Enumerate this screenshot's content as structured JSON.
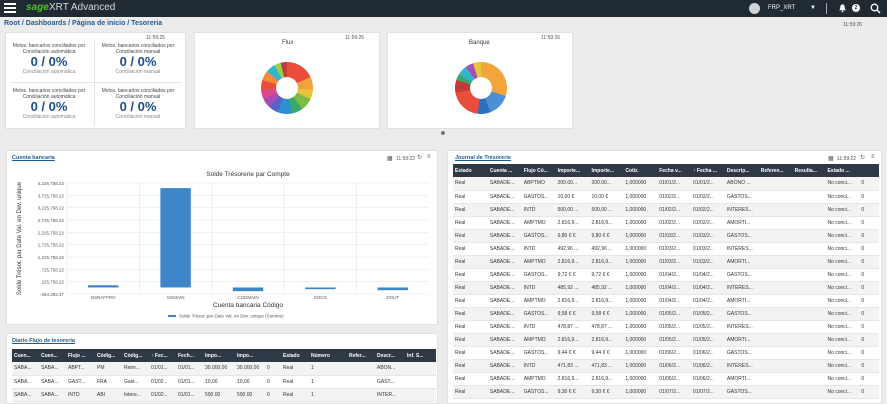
{
  "app": {
    "logo": "sage",
    "title": "XRT Advanced",
    "user": "FRP_XRT",
    "notifications": "2"
  },
  "breadcrumb": "Root / Dashboards / Página de inicio / Tesoreria",
  "breadcrumb_time": "11:59:26",
  "kpis": [
    {
      "title": "Mvtos. bancarios conciliados por Conciliación automática",
      "value": "0 / 0%",
      "sub": "Conciliación automática"
    },
    {
      "title": "Mvtos. bancarios conciliados por Conciliación manual",
      "value": "0 / 0%",
      "sub": "Conciliación manual"
    },
    {
      "title": "Mvtos. bancarios conciliados por Conciliación automática",
      "value": "0 / 0%",
      "sub": "Conciliación automática"
    },
    {
      "title": "Mvtos. bancarios conciliados por Conciliación manual",
      "value": "0 / 0%",
      "sub": "Conciliación manual"
    }
  ],
  "kpi_time": "11:59:25",
  "flux": {
    "title": "Flux",
    "time": "11:59:26"
  },
  "banque": {
    "title": "Banque",
    "time": "11:59:26"
  },
  "compte": {
    "link": "Cuenta bancaria",
    "time": "11:59:22"
  },
  "chart_data": {
    "type": "bar",
    "title": "Solde Trésorerie par Compte",
    "xlabel": "Cuenta bancaria Código",
    "ylabel": "Solde Trésor. par Date Val. en Dev. unique",
    "ylim": [
      -264283.47,
      4226758.22
    ],
    "yticks": [
      "4,226,758.22",
      "3,725,758.22",
      "3,225,758.22",
      "2,725,758.22",
      "2,225,758.22",
      "1,725,758.22",
      "1,225,758.22",
      "725,758.22",
      "225,758.22",
      "-264,283.47"
    ],
    "categories": [
      "BSRAFFRO",
      "SGMAIN",
      "CODMAIN",
      "SOCG",
      "DOUT"
    ],
    "values": [
      90000,
      4020000,
      -150000,
      -70000,
      -110000
    ],
    "legend": "Solde Trésor. par Date Val. en Dev. unique (Somme)"
  },
  "flujo": {
    "link": "Diario Flujo de tesorería",
    "headers": [
      "Cuen...",
      "Cuen...",
      "Flujo ...",
      "Códig...",
      "Códig...",
      "↑ Fec...",
      "Fech...",
      "Impo...",
      "Impo...",
      "",
      "Estado",
      "Número",
      "Refer...",
      "Descr...",
      "Inf. S..."
    ],
    "rows": [
      [
        "SABA...",
        "SABA...",
        "ABPT...",
        "PM",
        "Reim...",
        "01/01...",
        "01/01...",
        "30.000,00",
        "30.000,00",
        "0",
        "Real",
        "1",
        "",
        "ABON...",
        ""
      ],
      [
        "SABA...",
        "SABA...",
        "GAST...",
        "FRA",
        "Gast...",
        "01/02...",
        "01/01...",
        "10,00",
        "10,00",
        "0",
        "Real",
        "1",
        "",
        "GAST...",
        ""
      ],
      [
        "SABA...",
        "SABA...",
        "INTD",
        "ABI",
        "Intere...",
        "01/02...",
        "01/01...",
        "500,00",
        "500,00",
        "0",
        "Real",
        "1",
        "",
        "INTER...",
        ""
      ]
    ]
  },
  "journal": {
    "link": "Journal de Trésorerie",
    "time": "11:59:22",
    "headers": [
      "Estado",
      "Cuenta ...",
      "Flujo Có...",
      "Importe...",
      "Importe...",
      "Cotiz.",
      "Fecha v...",
      "↑ Fecha ...",
      "Descrip...",
      "Referen...",
      "Resulta...",
      "Estado ...",
      ""
    ],
    "rows": [
      [
        "Real",
        "SABADE...",
        "ABPTMO",
        "200.00...",
        "200.00...",
        "1,000000",
        "01/01/2...",
        "01/01/2...",
        "ABONO ...",
        "",
        "",
        "No conci...",
        "0"
      ],
      [
        "Real",
        "SABADE...",
        "GASTOS...",
        "10,00 €",
        "10,00 €",
        "1,000000",
        "01/02/2...",
        "01/02/2...",
        "GASTOS...",
        "",
        "",
        "No conci...",
        "0"
      ],
      [
        "Real",
        "SABADE...",
        "INTD",
        "500,00 ...",
        "500,00 ...",
        "1,000000",
        "01/02/2...",
        "01/02/2...",
        "INTERES...",
        "",
        "",
        "No conci...",
        "0"
      ],
      [
        "Real",
        "SABADE...",
        "AMPTMO",
        "2.816,9...",
        "2.816,9...",
        "1,000000",
        "01/02/2...",
        "01/02/2...",
        "AMORTI...",
        "",
        "",
        "No conci...",
        "0"
      ],
      [
        "Real",
        "SABADE...",
        "GASTOS...",
        "9,80 € €",
        "9,80 € €",
        "1,000000",
        "01/03/2...",
        "01/03/2...",
        "GASTOS...",
        "",
        "",
        "No conci...",
        "0"
      ],
      [
        "Real",
        "SABADE...",
        "INTD",
        "492,96 ...",
        "492,96 ...",
        "1,000000",
        "01/03/2...",
        "01/03/2...",
        "INTERES...",
        "",
        "",
        "No conci...",
        "0"
      ],
      [
        "Real",
        "SABADE...",
        "AMPTMO",
        "2.816,9...",
        "2.816,9...",
        "1,000000",
        "01/03/2...",
        "01/03/2...",
        "AMORTI...",
        "",
        "",
        "No conci...",
        "0"
      ],
      [
        "Real",
        "SABADE...",
        "GASTOS...",
        "9,72 € €",
        "9,72 € €",
        "1,000000",
        "01/04/2...",
        "01/04/2...",
        "GASTOS...",
        "",
        "",
        "No conci...",
        "0"
      ],
      [
        "Real",
        "SABADE...",
        "INTD",
        "485,92 ...",
        "485,92 ...",
        "1,000000",
        "01/04/2...",
        "01/04/2...",
        "INTERES...",
        "",
        "",
        "No conci...",
        "0"
      ],
      [
        "Real",
        "SABADE...",
        "AMPTMO",
        "2.816,9...",
        "2.816,9...",
        "1,000000",
        "01/04/2...",
        "01/04/2...",
        "AMORTI...",
        "",
        "",
        "No conci...",
        "0"
      ],
      [
        "Real",
        "SABADE...",
        "GASTOS...",
        "9,58 € €",
        "9,58 € €",
        "1,000000",
        "01/05/2...",
        "01/05/2...",
        "GASTOS...",
        "",
        "",
        "No conci...",
        "0"
      ],
      [
        "Real",
        "SABADE...",
        "INTD",
        "478,87 ...",
        "478,87 ...",
        "1,000000",
        "01/05/2...",
        "01/05/2...",
        "INTERES...",
        "",
        "",
        "No conci...",
        "0"
      ],
      [
        "Real",
        "SABADE...",
        "AMPTMO",
        "2.816,9...",
        "2.816,9...",
        "1,000000",
        "01/05/2...",
        "01/05/2...",
        "AMORTI...",
        "",
        "",
        "No conci...",
        "0"
      ],
      [
        "Real",
        "SABADE...",
        "GASTOS...",
        "9,44 € €",
        "9,44 € €",
        "1,000000",
        "01/06/2...",
        "01/06/2...",
        "GASTOS...",
        "",
        "",
        "No conci...",
        "0"
      ],
      [
        "Real",
        "SABADE...",
        "INTD",
        "471,83 ...",
        "471,83 ...",
        "1,000000",
        "01/06/2...",
        "01/06/2...",
        "INTERES...",
        "",
        "",
        "No conci...",
        "0"
      ],
      [
        "Real",
        "SABADE...",
        "AMPTMO",
        "2.816,9...",
        "2.816,9...",
        "1,000000",
        "01/06/2...",
        "01/06/2...",
        "AMORTI...",
        "",
        "",
        "No conci...",
        "0"
      ],
      [
        "Real",
        "SABADE...",
        "GASTOS...",
        "9,30 € €",
        "9,30 € €",
        "1,000000",
        "01/07/2...",
        "01/07/2...",
        "GASTOS...",
        "",
        "",
        "No conci...",
        "0"
      ]
    ]
  }
}
